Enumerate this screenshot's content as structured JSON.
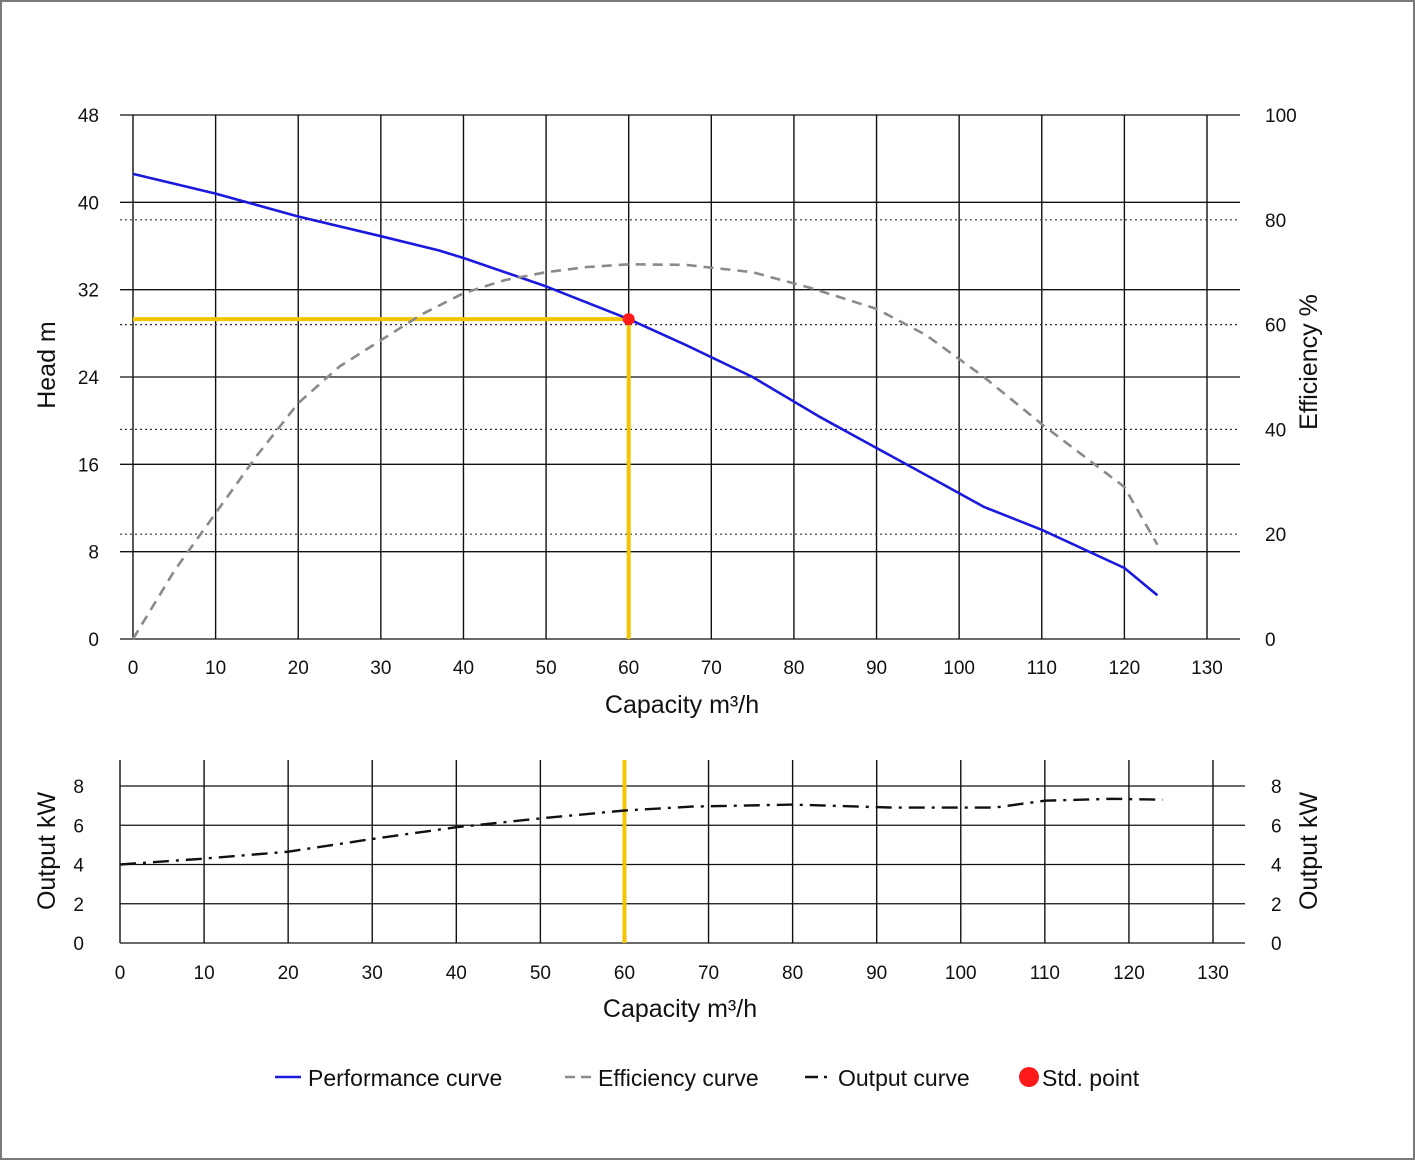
{
  "chart_data": [
    {
      "type": "line",
      "xlabel": "Capacity m³/h",
      "ylabel": "Head m",
      "y2label": "Efficiency %",
      "xlim": [
        0,
        130
      ],
      "ylim": [
        0,
        48
      ],
      "y2lim": [
        0,
        100
      ],
      "x_ticks": [
        0,
        10,
        20,
        30,
        40,
        50,
        60,
        70,
        80,
        90,
        100,
        110,
        120,
        130
      ],
      "y_ticks": [
        0,
        8,
        16,
        24,
        32,
        40,
        48
      ],
      "y2_ticks": [
        0,
        20,
        40,
        60,
        80,
        100
      ],
      "grid": true,
      "series": [
        {
          "name": "Performance curve",
          "axis": "left",
          "color": "#1a1adf",
          "style": "solid",
          "x": [
            0,
            10,
            20,
            30,
            37,
            40,
            50,
            60,
            67,
            75,
            83,
            90,
            97,
            103,
            110,
            120,
            124
          ],
          "y": [
            42.6,
            40.8,
            38.7,
            36.9,
            35.6,
            34.9,
            32.3,
            29.3,
            26.9,
            24.0,
            20.4,
            17.5,
            14.6,
            12.1,
            10.0,
            6.5,
            4.0
          ]
        },
        {
          "name": "Efficiency curve",
          "axis": "right",
          "color": "#8a8a8a",
          "style": "dashed",
          "x": [
            0,
            5,
            10,
            15,
            20,
            25,
            30,
            35,
            40,
            45,
            50,
            55,
            60,
            67,
            75,
            82,
            90,
            96,
            103,
            110,
            120,
            124
          ],
          "y": [
            0,
            13,
            24,
            35,
            45,
            52,
            57,
            62,
            66,
            68.5,
            70,
            71,
            71.5,
            71.4,
            70,
            67,
            63,
            58,
            50,
            41,
            29,
            18
          ]
        }
      ],
      "marker": {
        "name": "Std. point",
        "x": 60,
        "y": 29.3,
        "color": "#ff1a1a",
        "guide_color": "#f5c400"
      }
    },
    {
      "type": "line",
      "xlabel": "Capacity m³/h",
      "ylabel": "Output kW",
      "y2label": "Output kW",
      "xlim": [
        0,
        130
      ],
      "ylim": [
        0,
        8
      ],
      "x_ticks": [
        0,
        10,
        20,
        30,
        40,
        50,
        60,
        70,
        80,
        90,
        100,
        110,
        120,
        130
      ],
      "y_ticks": [
        0,
        2,
        4,
        6,
        8
      ],
      "grid": true,
      "series": [
        {
          "name": "Output curve",
          "color": "#111111",
          "style": "dashdot",
          "x": [
            0,
            10,
            20,
            30,
            40,
            50,
            60,
            68,
            80,
            92,
            104,
            110,
            118,
            124
          ],
          "y": [
            4.0,
            4.3,
            4.65,
            5.3,
            5.9,
            6.35,
            6.75,
            6.95,
            7.05,
            6.9,
            6.9,
            7.25,
            7.35,
            7.3
          ]
        }
      ],
      "guide_x": 60,
      "guide_color": "#f5c400"
    }
  ],
  "legend": [
    {
      "label": "Performance curve",
      "symbol": "solid",
      "color": "#1a1adf"
    },
    {
      "label": "Efficiency curve",
      "symbol": "dashed",
      "color": "#8a8a8a"
    },
    {
      "label": "Output curve",
      "symbol": "dashdot",
      "color": "#111111"
    },
    {
      "label": "Std. point",
      "symbol": "dot",
      "color": "#ff1a1a"
    }
  ]
}
